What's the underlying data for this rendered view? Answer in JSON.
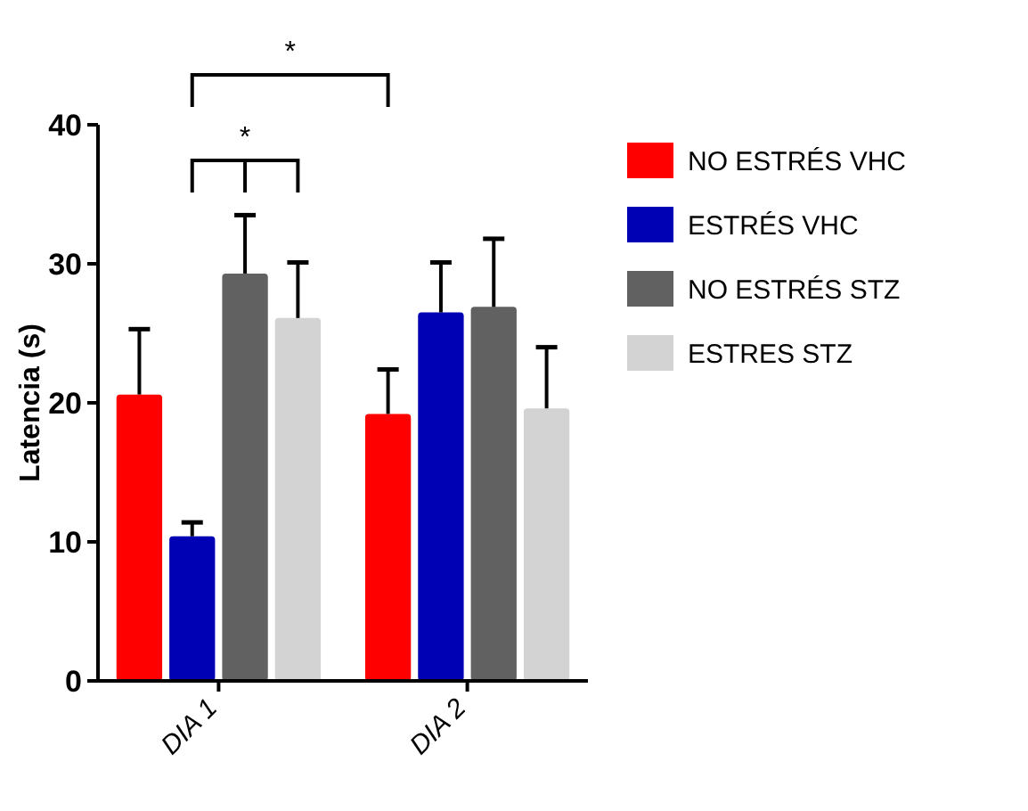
{
  "chart_data": {
    "type": "bar",
    "ylabel": "Latencia (s)",
    "categories": [
      "DIA 1",
      "DIA 2"
    ],
    "ylim": [
      0,
      40
    ],
    "yticks": [
      0,
      10,
      20,
      30,
      40
    ],
    "legend": "right",
    "annotations": [
      "*",
      "*"
    ],
    "series": [
      {
        "name": "NO ESTRÉS VHC",
        "color": "#ff0000",
        "values": [
          20.6,
          19.2
        ],
        "errors": [
          [
            20.6,
            25.3
          ],
          [
            19.2,
            22.4
          ]
        ]
      },
      {
        "name": "ESTRÉS VHC",
        "color": "#0000b4",
        "values": [
          10.4,
          26.5
        ],
        "errors": [
          [
            10.4,
            11.4
          ],
          [
            26.5,
            30.1
          ]
        ]
      },
      {
        "name": "NO ESTRÉS STZ",
        "color": "#616161",
        "values": [
          29.3,
          26.9
        ],
        "errors": [
          [
            29.3,
            33.5
          ],
          [
            26.9,
            31.8
          ]
        ]
      },
      {
        "name": "ESTRES STZ",
        "color": "#d3d3d3",
        "values": [
          26.1,
          19.6
        ],
        "errors": [
          [
            26.1,
            30.1
          ],
          [
            19.6,
            24.0
          ]
        ]
      }
    ]
  }
}
